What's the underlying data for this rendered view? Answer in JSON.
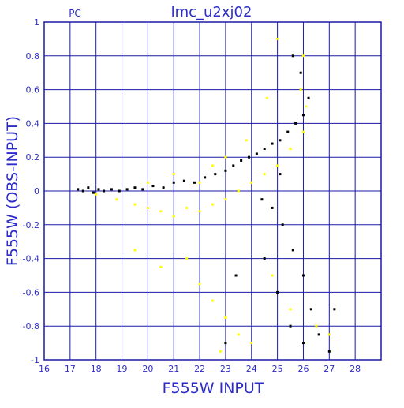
{
  "chart_data": {
    "type": "scatter",
    "title": "lmc_u2xj02",
    "corner_label": "PC",
    "xlabel": "F555W INPUT",
    "ylabel": "F555W (OBS-INPUT)",
    "xlim": [
      16,
      29
    ],
    "ylim": [
      -1,
      1
    ],
    "x_ticks": [
      16,
      17,
      18,
      19,
      20,
      21,
      22,
      23,
      24,
      25,
      26,
      27,
      28
    ],
    "y_ticks": [
      -1,
      -0.8,
      -0.6,
      -0.4,
      -0.2,
      0,
      0.2,
      0.4,
      0.6,
      0.8,
      1
    ],
    "grid": true,
    "colors": {
      "axis": "#1a1aa6",
      "text": "#2c2cc8",
      "series_black": "#000000",
      "series_yellow": "#ffff00"
    },
    "series": [
      {
        "color": "black",
        "points": [
          [
            17.3,
            0.01
          ],
          [
            17.5,
            0.0
          ],
          [
            17.7,
            0.02
          ],
          [
            17.9,
            -0.01
          ],
          [
            18.1,
            0.01
          ],
          [
            18.3,
            0.0
          ],
          [
            18.6,
            0.01
          ],
          [
            18.9,
            0.0
          ],
          [
            19.2,
            0.01
          ],
          [
            19.5,
            0.02
          ],
          [
            19.8,
            0.01
          ],
          [
            20.2,
            0.03
          ],
          [
            20.6,
            0.02
          ],
          [
            21.0,
            0.05
          ],
          [
            21.4,
            0.06
          ],
          [
            21.8,
            0.05
          ],
          [
            22.2,
            0.08
          ],
          [
            22.6,
            0.1
          ],
          [
            23.0,
            0.12
          ],
          [
            23.3,
            0.15
          ],
          [
            23.6,
            0.18
          ],
          [
            23.9,
            0.2
          ],
          [
            24.2,
            0.22
          ],
          [
            24.5,
            0.25
          ],
          [
            24.8,
            0.28
          ],
          [
            25.1,
            0.3
          ],
          [
            25.4,
            0.35
          ],
          [
            25.7,
            0.4
          ],
          [
            26.0,
            0.45
          ],
          [
            26.2,
            0.55
          ],
          [
            25.9,
            0.7
          ],
          [
            25.6,
            0.8
          ],
          [
            24.4,
            -0.05
          ],
          [
            24.8,
            -0.1
          ],
          [
            25.2,
            -0.2
          ],
          [
            25.6,
            -0.35
          ],
          [
            26.0,
            -0.5
          ],
          [
            26.3,
            -0.7
          ],
          [
            26.6,
            -0.85
          ],
          [
            27.0,
            -0.95
          ],
          [
            24.5,
            -0.4
          ],
          [
            25.0,
            -0.6
          ],
          [
            25.5,
            -0.8
          ],
          [
            26.0,
            -0.9
          ],
          [
            23.4,
            -0.5
          ],
          [
            23.0,
            -0.9
          ],
          [
            27.2,
            -0.7
          ],
          [
            25.1,
            0.1
          ]
        ]
      },
      {
        "color": "yellow",
        "points": [
          [
            18.0,
            -0.02
          ],
          [
            18.8,
            -0.05
          ],
          [
            19.5,
            -0.08
          ],
          [
            20.0,
            -0.1
          ],
          [
            20.5,
            -0.12
          ],
          [
            21.0,
            -0.15
          ],
          [
            21.5,
            -0.1
          ],
          [
            22.0,
            -0.12
          ],
          [
            22.5,
            -0.08
          ],
          [
            23.0,
            -0.05
          ],
          [
            23.5,
            0.0
          ],
          [
            24.0,
            0.05
          ],
          [
            24.5,
            0.1
          ],
          [
            25.0,
            0.15
          ],
          [
            25.5,
            0.25
          ],
          [
            26.0,
            0.35
          ],
          [
            26.1,
            0.5
          ],
          [
            25.9,
            0.6
          ],
          [
            26.0,
            0.8
          ],
          [
            22.0,
            0.05
          ],
          [
            22.5,
            0.15
          ],
          [
            23.0,
            0.2
          ],
          [
            21.0,
            0.1
          ],
          [
            20.0,
            0.05
          ],
          [
            21.5,
            -0.4
          ],
          [
            22.0,
            -0.55
          ],
          [
            22.5,
            -0.65
          ],
          [
            23.0,
            -0.75
          ],
          [
            23.5,
            -0.85
          ],
          [
            24.0,
            -0.9
          ],
          [
            19.5,
            -0.35
          ],
          [
            20.5,
            -0.45
          ],
          [
            24.8,
            -0.5
          ],
          [
            25.5,
            -0.7
          ],
          [
            26.5,
            -0.8
          ],
          [
            27.0,
            -0.85
          ],
          [
            25.0,
            0.9
          ],
          [
            23.8,
            0.3
          ],
          [
            24.6,
            0.55
          ],
          [
            22.8,
            -0.95
          ]
        ]
      }
    ]
  }
}
